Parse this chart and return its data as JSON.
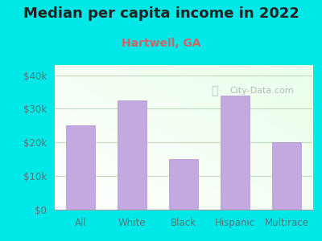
{
  "title": "Median per capita income in 2022",
  "subtitle": "Hartwell, GA",
  "categories": [
    "All",
    "White",
    "Black",
    "Hispanic",
    "Multirace"
  ],
  "values": [
    25000,
    32500,
    15000,
    34000,
    20000
  ],
  "bar_color": "#c4a8e0",
  "bar_edge_color": "#b090cc",
  "bg_color": "#00e8e8",
  "title_color": "#222222",
  "subtitle_color": "#cc6666",
  "tick_color": "#557777",
  "grid_color": "#c0d8c0",
  "yticks": [
    0,
    10000,
    20000,
    30000,
    40000
  ],
  "ytick_labels": [
    "$0",
    "$10k",
    "$20k",
    "$30k",
    "$40k"
  ],
  "ylim": [
    0,
    43000
  ],
  "watermark": "City-Data.com",
  "watermark_color": "#aaaaaa",
  "title_fontsize": 13,
  "subtitle_fontsize": 10,
  "tick_fontsize": 8.5
}
